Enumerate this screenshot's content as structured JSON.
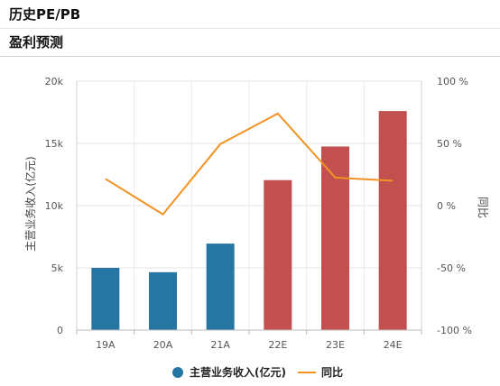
{
  "header": {
    "title": "历史PE/PB",
    "subtitle": "盈利预测"
  },
  "chart_data": {
    "type": "bar",
    "categories": [
      "19A",
      "20A",
      "21A",
      "22E",
      "23E",
      "24E"
    ],
    "series": [
      {
        "name": "主营业务收入(亿元)",
        "type": "bar",
        "values": [
          5000,
          4650,
          6950,
          12050,
          14750,
          17600
        ],
        "colors": [
          "#2676a4",
          "#2676a4",
          "#2676a4",
          "#c1504e",
          "#c1504e",
          "#c1504e"
        ]
      },
      {
        "name": "同比",
        "type": "line",
        "axis": "right",
        "values": [
          21.5,
          -7,
          49.5,
          74,
          22.5,
          20
        ],
        "color": "#f29324"
      }
    ],
    "y_left": {
      "label": "主营业务收入(亿元)",
      "min": 0,
      "max": 20000,
      "ticks": [
        "0",
        "5k",
        "10k",
        "15k",
        "20k"
      ]
    },
    "y_right": {
      "label": "同比",
      "min": -100,
      "max": 100,
      "ticks": [
        "-100 %",
        "-50 %",
        "0 %",
        "50 %",
        "100 %"
      ]
    },
    "legend_position": "bottom",
    "grid": true
  }
}
